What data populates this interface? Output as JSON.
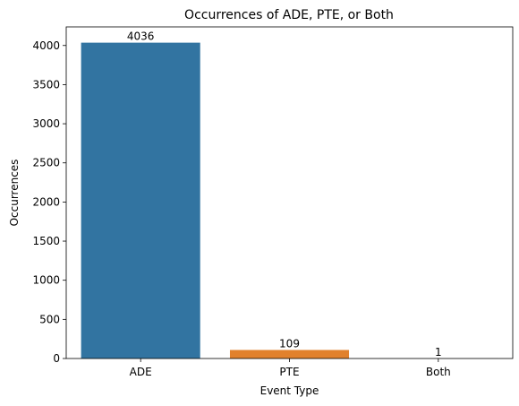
{
  "chart_data": {
    "type": "bar",
    "title": "Occurrences of ADE, PTE, or Both",
    "xlabel": "Event Type",
    "ylabel": "Occurrences",
    "categories": [
      "ADE",
      "PTE",
      "Both"
    ],
    "values": [
      4036,
      109,
      1
    ],
    "data_labels": [
      "4036",
      "109",
      "1"
    ],
    "colors": [
      "#3274a1",
      "#e1812c",
      "#3a923a"
    ],
    "ylim": [
      0,
      4237.8
    ],
    "yticks": [
      0,
      500,
      1000,
      1500,
      2000,
      2500,
      3000,
      3500,
      4000
    ],
    "grid": false,
    "legend": "none"
  }
}
